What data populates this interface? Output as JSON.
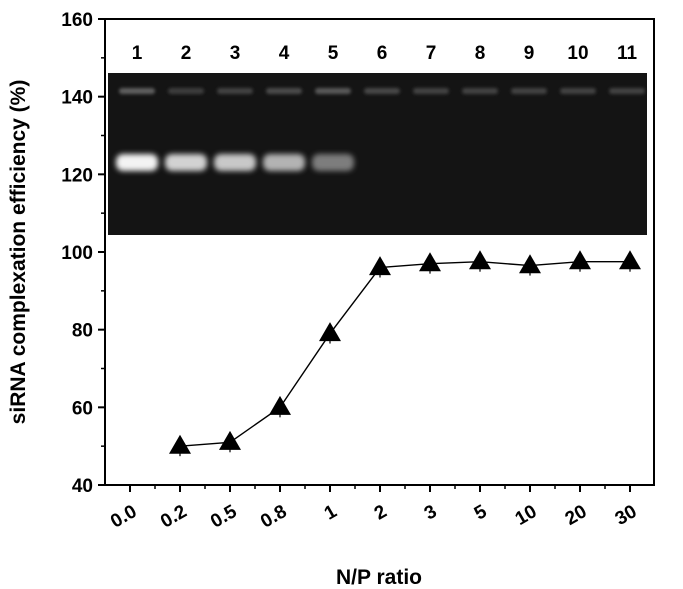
{
  "chart_data": {
    "type": "line",
    "title": "",
    "xlabel": "N/P ratio",
    "ylabel": "siRNA complexation efficiency (%)",
    "categories": [
      "0.0",
      "0.2",
      "0.5",
      "0.8",
      "1",
      "2",
      "3",
      "5",
      "10",
      "20",
      "30"
    ],
    "ylim": [
      40,
      160
    ],
    "yticks": [
      "40",
      "60",
      "80",
      "100",
      "120",
      "140",
      "160"
    ],
    "series": [
      {
        "marker": "filled-triangle",
        "color": "#000000",
        "points": [
          {
            "x": "0.2",
            "y": 50
          },
          {
            "x": "0.5",
            "y": 51
          },
          {
            "x": "0.8",
            "y": 60
          },
          {
            "x": "1",
            "y": 79
          },
          {
            "x": "2",
            "y": 96
          },
          {
            "x": "3",
            "y": 97
          },
          {
            "x": "5",
            "y": 97.5
          },
          {
            "x": "10",
            "y": 96.5
          },
          {
            "x": "20",
            "y": 97.5
          },
          {
            "x": "30",
            "y": 97.5
          }
        ]
      }
    ],
    "inset_gel": {
      "lanes": [
        "1",
        "2",
        "3",
        "4",
        "5",
        "6",
        "7",
        "8",
        "9",
        "10",
        "11"
      ],
      "free_sirna_band_intensity": [
        1.0,
        0.85,
        0.8,
        0.7,
        0.45,
        0,
        0,
        0,
        0,
        0,
        0
      ],
      "well_glow_intensity": [
        0.9,
        0.35,
        0.45,
        0.6,
        0.8,
        0.5,
        0.45,
        0.45,
        0.45,
        0.45,
        0.45
      ]
    }
  }
}
